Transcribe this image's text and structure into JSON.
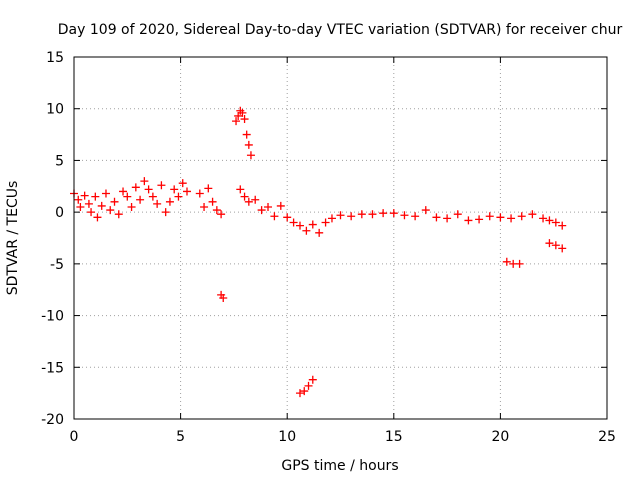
{
  "chart_data": {
    "type": "scatter",
    "title": "Day 109 of 2020, Sidereal Day-to-day VTEC variation (SDTVAR) for receiver chur",
    "xlabel": "GPS time / hours",
    "ylabel": "SDTVAR / TECUs",
    "xlim": [
      0,
      25
    ],
    "ylim": [
      -20,
      15
    ],
    "xticks": [
      0,
      5,
      10,
      15,
      20,
      25
    ],
    "yticks": [
      15,
      10,
      5,
      0,
      -5,
      -10,
      -15,
      -20
    ],
    "grid": true,
    "marker": "+",
    "color": "#ff0000",
    "series": [
      {
        "name": "SDTVAR",
        "points": [
          [
            0.0,
            1.8
          ],
          [
            0.2,
            1.2
          ],
          [
            0.3,
            0.5
          ],
          [
            0.5,
            1.6
          ],
          [
            0.7,
            0.8
          ],
          [
            0.8,
            0.0
          ],
          [
            1.0,
            1.5
          ],
          [
            1.1,
            -0.5
          ],
          [
            1.3,
            0.6
          ],
          [
            1.5,
            1.8
          ],
          [
            1.7,
            0.2
          ],
          [
            1.9,
            1.0
          ],
          [
            2.1,
            -0.2
          ],
          [
            2.3,
            2.0
          ],
          [
            2.5,
            1.5
          ],
          [
            2.7,
            0.5
          ],
          [
            2.9,
            2.4
          ],
          [
            3.1,
            1.2
          ],
          [
            3.3,
            3.0
          ],
          [
            3.5,
            2.2
          ],
          [
            3.7,
            1.5
          ],
          [
            3.9,
            0.8
          ],
          [
            4.1,
            2.6
          ],
          [
            4.3,
            0.0
          ],
          [
            4.5,
            1.0
          ],
          [
            4.7,
            2.2
          ],
          [
            4.9,
            1.5
          ],
          [
            5.1,
            2.8
          ],
          [
            5.3,
            2.0
          ],
          [
            5.9,
            1.8
          ],
          [
            6.1,
            0.5
          ],
          [
            6.3,
            2.3
          ],
          [
            6.5,
            1.0
          ],
          [
            6.7,
            0.2
          ],
          [
            6.9,
            -0.2
          ],
          [
            6.9,
            -8.0
          ],
          [
            7.0,
            -8.3
          ],
          [
            7.6,
            8.8
          ],
          [
            7.7,
            9.3
          ],
          [
            7.8,
            9.8
          ],
          [
            7.9,
            9.6
          ],
          [
            8.0,
            9.0
          ],
          [
            8.1,
            7.5
          ],
          [
            8.2,
            6.5
          ],
          [
            8.3,
            5.5
          ],
          [
            7.8,
            2.2
          ],
          [
            8.0,
            1.5
          ],
          [
            8.2,
            1.0
          ],
          [
            8.5,
            1.2
          ],
          [
            8.8,
            0.2
          ],
          [
            9.1,
            0.5
          ],
          [
            9.4,
            -0.4
          ],
          [
            9.7,
            0.6
          ],
          [
            10.0,
            -0.5
          ],
          [
            10.3,
            -1.0
          ],
          [
            10.6,
            -1.3
          ],
          [
            10.9,
            -1.8
          ],
          [
            11.2,
            -1.2
          ],
          [
            11.5,
            -2.0
          ],
          [
            11.8,
            -1.0
          ],
          [
            12.1,
            -0.6
          ],
          [
            10.6,
            -17.5
          ],
          [
            10.8,
            -17.3
          ],
          [
            11.0,
            -16.8
          ],
          [
            11.2,
            -16.2
          ],
          [
            12.5,
            -0.3
          ],
          [
            13.0,
            -0.4
          ],
          [
            13.5,
            -0.2
          ],
          [
            14.0,
            -0.2
          ],
          [
            14.5,
            -0.1
          ],
          [
            15.0,
            -0.1
          ],
          [
            15.5,
            -0.3
          ],
          [
            16.0,
            -0.4
          ],
          [
            16.5,
            0.2
          ],
          [
            17.0,
            -0.5
          ],
          [
            17.5,
            -0.6
          ],
          [
            18.0,
            -0.2
          ],
          [
            18.5,
            -0.8
          ],
          [
            19.0,
            -0.7
          ],
          [
            19.5,
            -0.4
          ],
          [
            20.0,
            -0.5
          ],
          [
            20.5,
            -0.6
          ],
          [
            20.3,
            -4.8
          ],
          [
            20.6,
            -5.0
          ],
          [
            20.9,
            -5.0
          ],
          [
            21.0,
            -0.4
          ],
          [
            21.5,
            -0.2
          ],
          [
            22.0,
            -0.6
          ],
          [
            22.3,
            -0.8
          ],
          [
            22.6,
            -1.0
          ],
          [
            22.9,
            -1.3
          ],
          [
            22.3,
            -3.0
          ],
          [
            22.6,
            -3.2
          ],
          [
            22.9,
            -3.5
          ]
        ]
      }
    ]
  }
}
